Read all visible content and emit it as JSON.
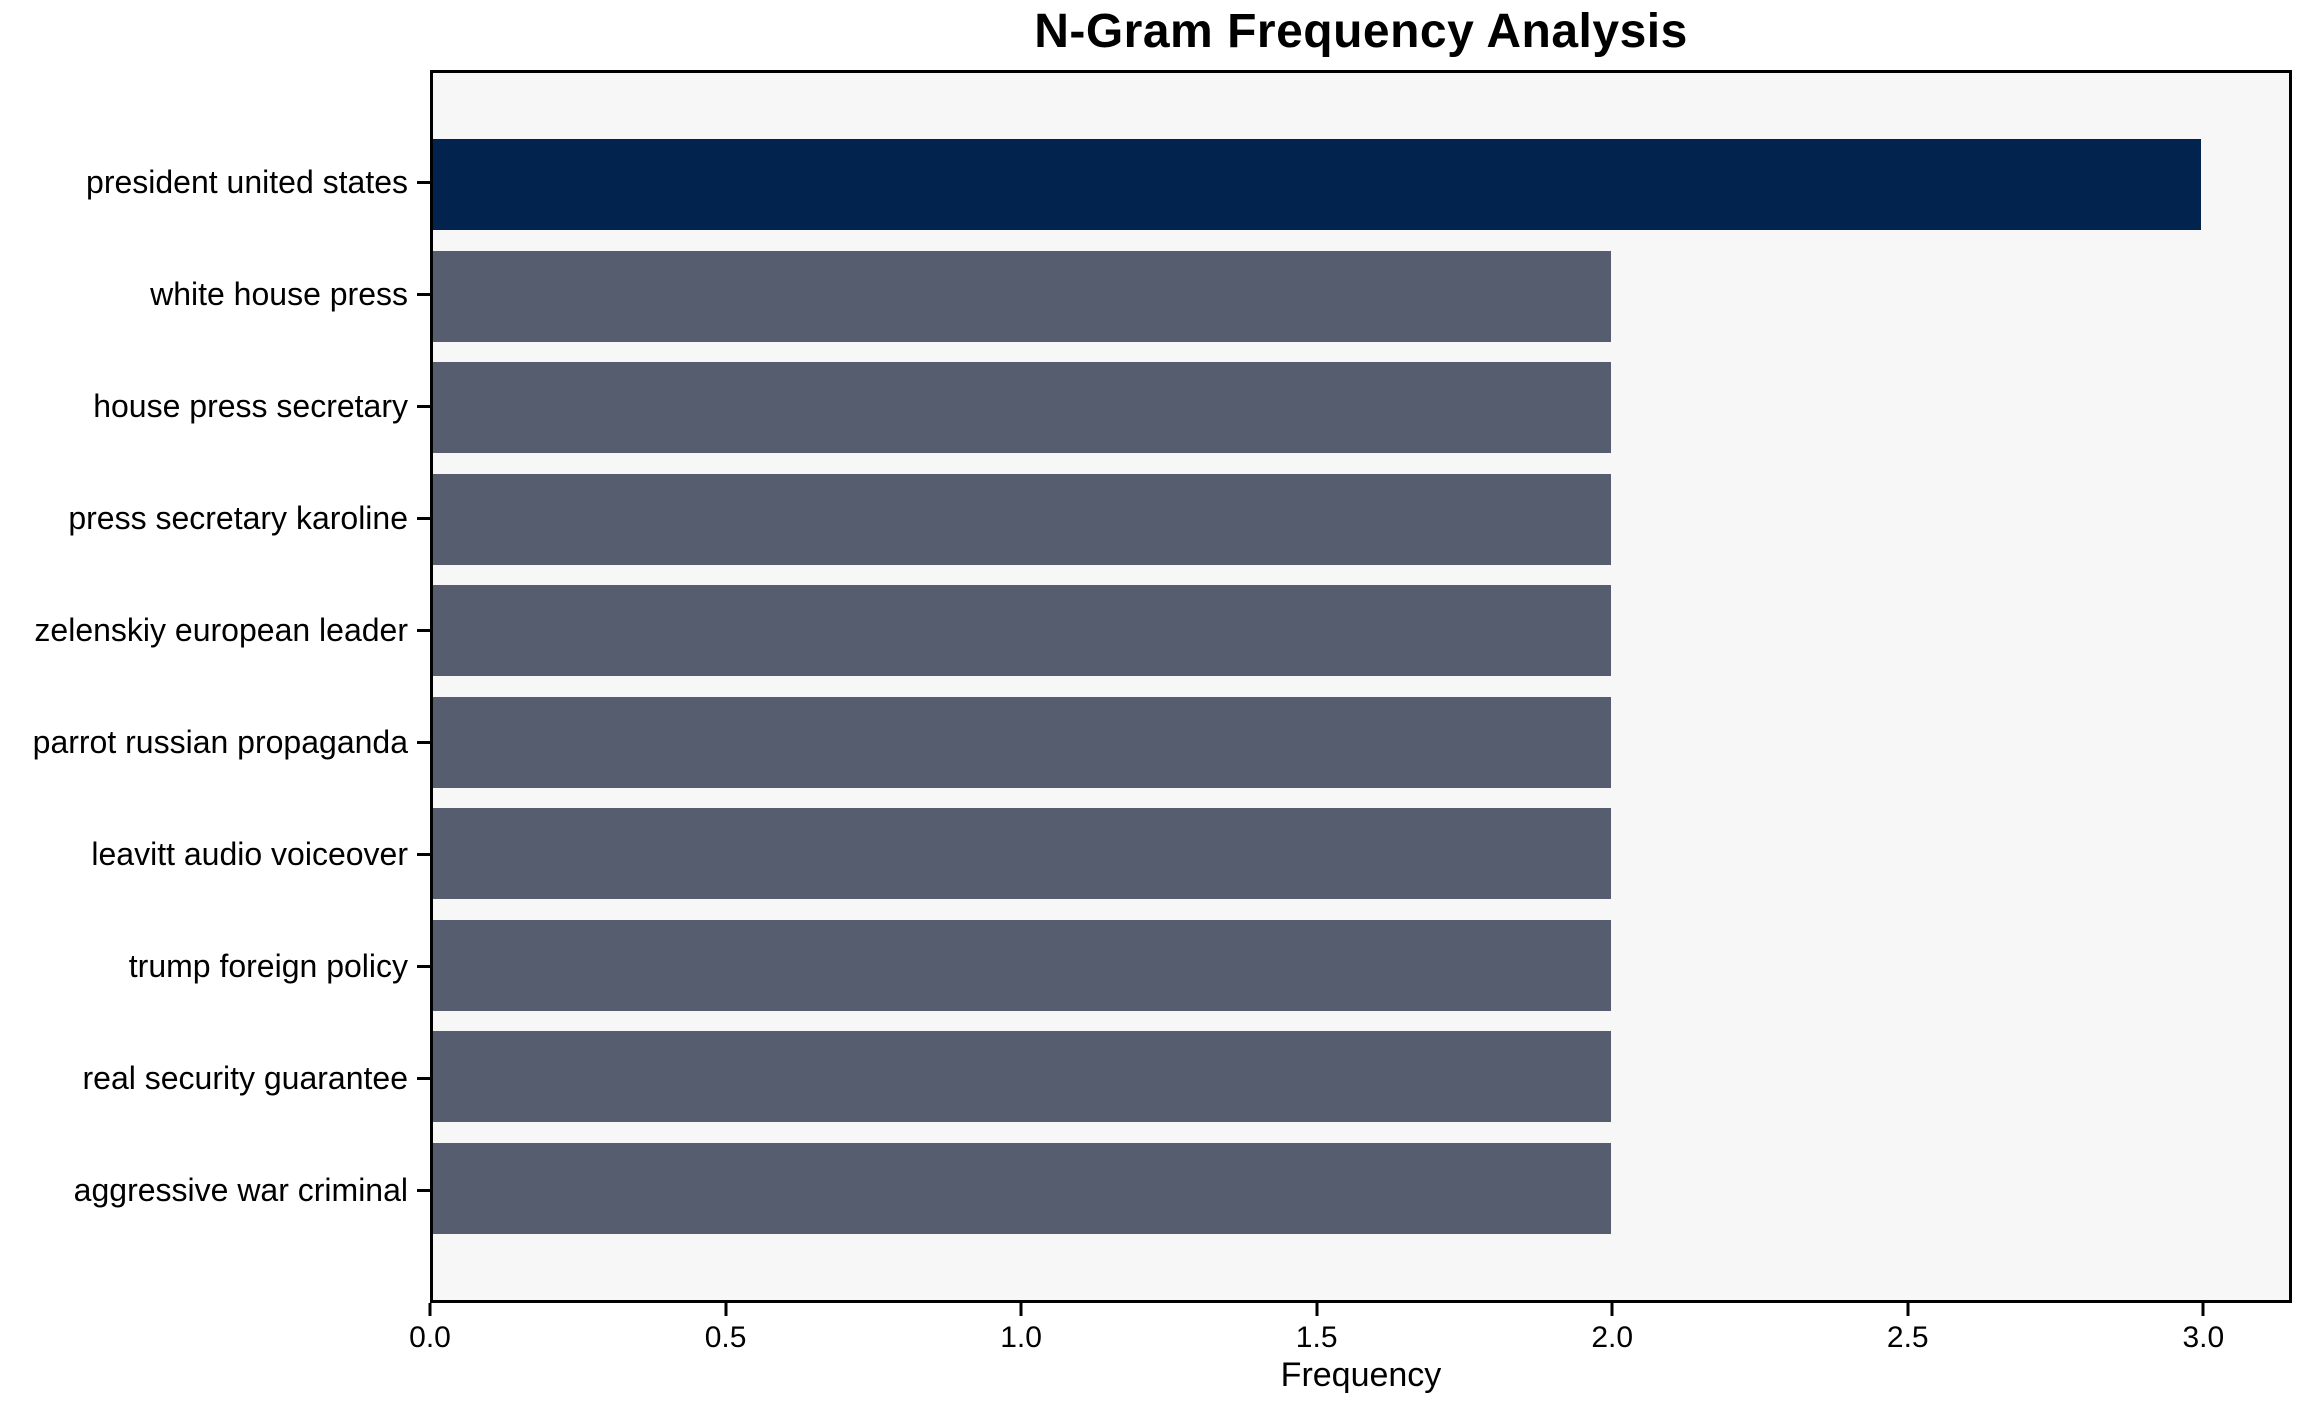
{
  "title": "N-Gram Frequency Analysis",
  "chart_data": {
    "type": "bar",
    "orientation": "horizontal",
    "title": "N-Gram Frequency Analysis",
    "xlabel": "Frequency",
    "ylabel": "",
    "categories": [
      "president united states",
      "white house press",
      "house press secretary",
      "press secretary karoline",
      "zelenskiy european leader",
      "parrot russian propaganda",
      "leavitt audio voiceover",
      "trump foreign policy",
      "real security guarantee",
      "aggressive war criminal"
    ],
    "values": [
      3,
      2,
      2,
      2,
      2,
      2,
      2,
      2,
      2,
      2
    ],
    "bar_colors": [
      "#02234E",
      "#565D6E",
      "#565D6E",
      "#565D6E",
      "#565D6E",
      "#565D6E",
      "#565D6E",
      "#565D6E",
      "#565D6E",
      "#565D6E"
    ],
    "xlim": [
      0,
      3.15
    ],
    "xticks": [
      0,
      0.5,
      1.0,
      1.5,
      2.0,
      2.5,
      3.0
    ],
    "xtick_labels": [
      "0.0",
      "0.5",
      "1.0",
      "1.5",
      "2.0",
      "2.5",
      "3.0"
    ],
    "grid": false,
    "legend": null,
    "bar_height_fraction": 0.8,
    "colors": {
      "highlight": "#02234E",
      "default_bar": "#565D6E",
      "plot_bg": "#F7F7F8",
      "figure_bg": "#FFFFFF",
      "spine": "#000000",
      "text": "#000000"
    }
  }
}
